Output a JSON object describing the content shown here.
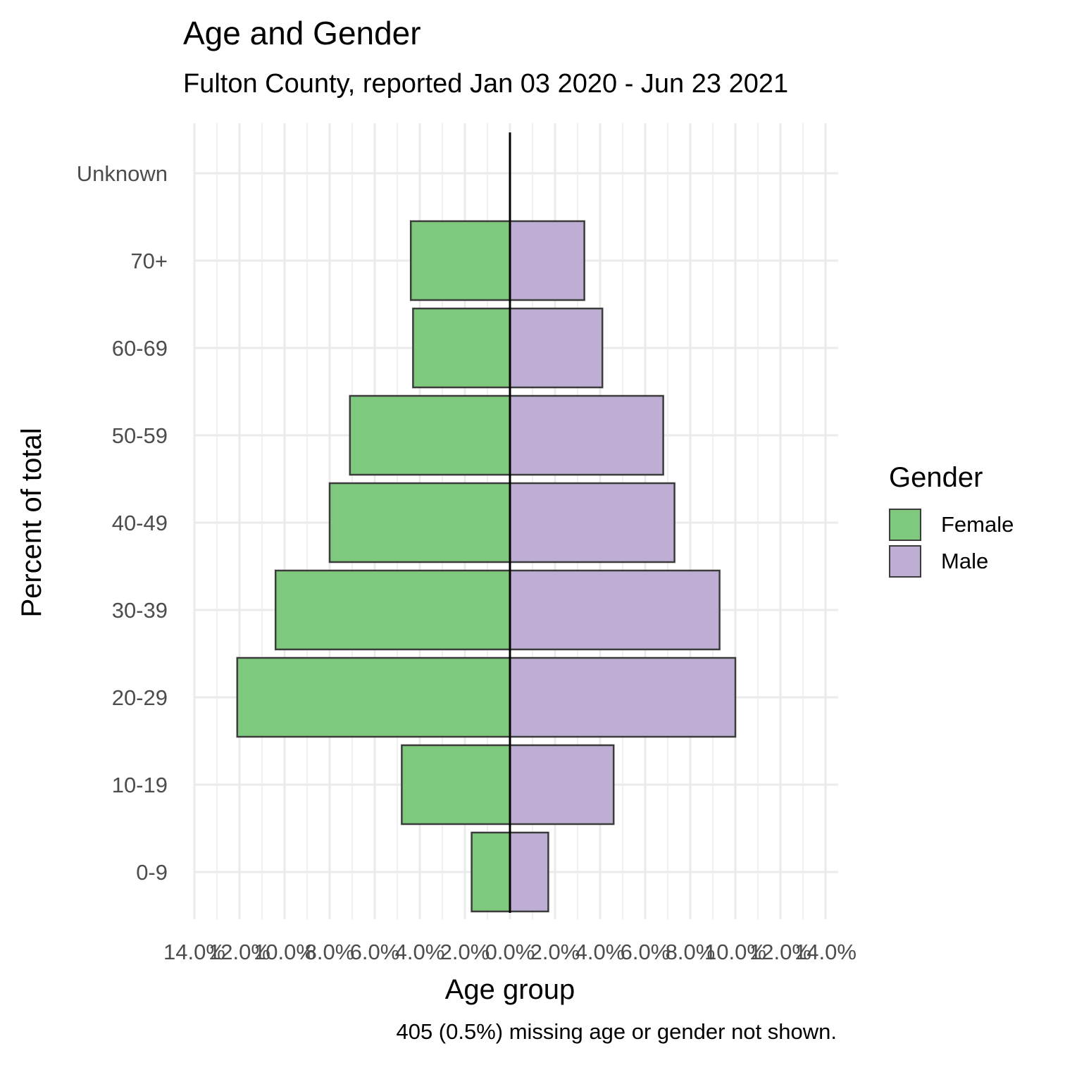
{
  "chart_data": {
    "type": "bar",
    "orientation": "horizontal-population-pyramid",
    "title": "Age and Gender",
    "subtitle": "Fulton County, reported Jan 03 2020 - Jun 23 2021",
    "caption": "405 (0.5%) missing age or gender not shown.",
    "xlabel": "Age group",
    "ylabel": "Percent of total",
    "categories": [
      "0-9",
      "10-19",
      "20-29",
      "30-39",
      "40-49",
      "50-59",
      "60-69",
      "70+",
      "Unknown"
    ],
    "series": [
      {
        "name": "Female",
        "color": "#7fc97f",
        "values": [
          1.7,
          4.8,
          12.1,
          10.4,
          8.0,
          7.1,
          4.3,
          4.4,
          0.0
        ]
      },
      {
        "name": "Male",
        "color": "#beaed4",
        "values": [
          1.7,
          4.6,
          10.0,
          9.3,
          7.3,
          6.8,
          4.1,
          3.3,
          0.0
        ]
      }
    ],
    "xlim": [
      -14,
      14
    ],
    "x_tick_values": [
      -14,
      -12,
      -10,
      -8,
      -6,
      -4,
      -2,
      0,
      2,
      4,
      6,
      8,
      10,
      12,
      14
    ],
    "x_tick_labels": [
      "14.0%",
      "12.0%",
      "10.0%",
      "8.0%",
      "6.0%",
      "4.0%",
      "2.0%",
      "0.0%",
      "2.0%",
      "4.0%",
      "6.0%",
      "8.0%",
      "10.0%",
      "12.0%",
      "14.0%"
    ],
    "grid": true,
    "legend": {
      "title": "Gender",
      "position": "right"
    }
  }
}
